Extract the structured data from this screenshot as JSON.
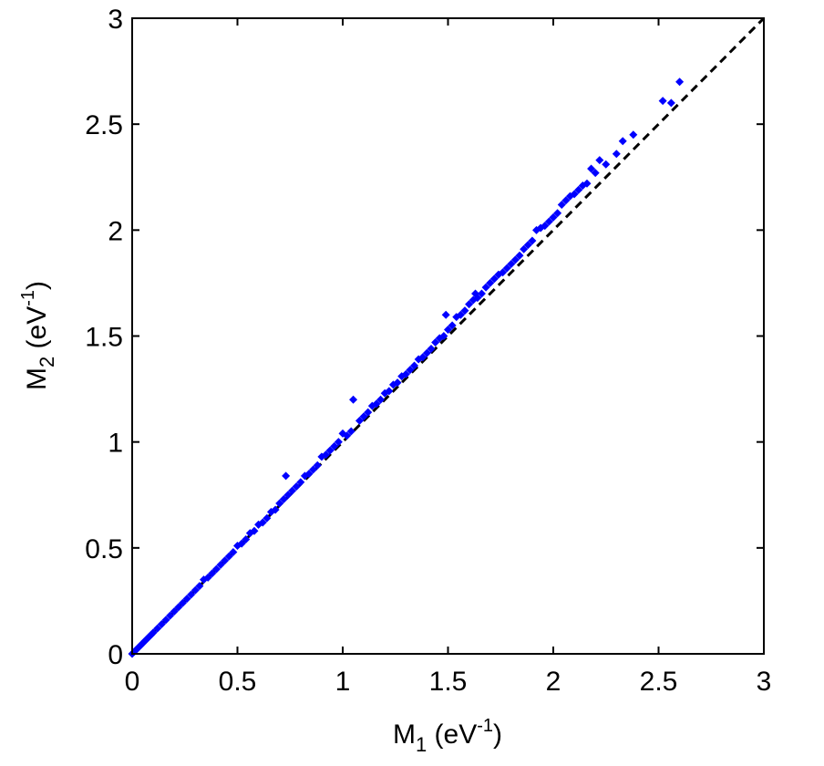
{
  "chart_data": {
    "type": "scatter",
    "title": "",
    "xlabel": {
      "base": "M",
      "sub": "1",
      "unit_prefix": " (eV",
      "unit_exp": "-1",
      "unit_suffix": ")"
    },
    "ylabel": {
      "base": "M",
      "sub": "2",
      "unit_prefix": " (eV",
      "unit_exp": "-1",
      "unit_suffix": ")"
    },
    "xlim": [
      0,
      3
    ],
    "ylim": [
      0,
      3
    ],
    "xticks": [
      "0",
      "0.5",
      "1",
      "1.5",
      "2",
      "2.5",
      "3"
    ],
    "yticks": [
      "0",
      "0.5",
      "1",
      "1.5",
      "2",
      "2.5",
      "3"
    ],
    "grid": false,
    "reference_line": {
      "style": "dashed",
      "color": "#000000",
      "from": [
        0,
        0
      ],
      "to": [
        3,
        3
      ]
    },
    "series": [
      {
        "marker": "diamond",
        "color": "#0000ff",
        "x": [
          0.0,
          0.01,
          0.02,
          0.03,
          0.04,
          0.05,
          0.06,
          0.07,
          0.08,
          0.09,
          0.1,
          0.12,
          0.14,
          0.16,
          0.18,
          0.2,
          0.22,
          0.24,
          0.26,
          0.28,
          0.3,
          0.32,
          0.34,
          0.36,
          0.38,
          0.4,
          0.42,
          0.44,
          0.46,
          0.48,
          0.5,
          0.52,
          0.54,
          0.56,
          0.58,
          0.6,
          0.62,
          0.64,
          0.66,
          0.68,
          0.7,
          0.72,
          0.73,
          0.74,
          0.76,
          0.78,
          0.8,
          0.82,
          0.84,
          0.86,
          0.88,
          0.9,
          0.92,
          0.94,
          0.96,
          0.98,
          1.0,
          1.02,
          1.04,
          1.05,
          1.08,
          1.1,
          1.12,
          1.14,
          1.16,
          1.18,
          1.2,
          1.22,
          1.24,
          1.26,
          1.28,
          1.3,
          1.32,
          1.34,
          1.36,
          1.38,
          1.4,
          1.42,
          1.44,
          1.46,
          1.48,
          1.49,
          1.5,
          1.52,
          1.54,
          1.56,
          1.58,
          1.6,
          1.62,
          1.63,
          1.64,
          1.66,
          1.68,
          1.7,
          1.72,
          1.74,
          1.76,
          1.78,
          1.8,
          1.82,
          1.84,
          1.86,
          1.88,
          1.9,
          1.92,
          1.94,
          1.96,
          1.98,
          2.0,
          2.02,
          2.04,
          2.06,
          2.08,
          2.1,
          2.12,
          2.14,
          2.16,
          2.18,
          2.2,
          2.22,
          2.25,
          2.3,
          2.33,
          2.38,
          2.52,
          2.56,
          2.6
        ],
        "y": [
          0.0,
          0.01,
          0.02,
          0.03,
          0.04,
          0.05,
          0.06,
          0.07,
          0.08,
          0.09,
          0.1,
          0.12,
          0.14,
          0.16,
          0.18,
          0.2,
          0.22,
          0.24,
          0.26,
          0.28,
          0.3,
          0.32,
          0.35,
          0.36,
          0.38,
          0.4,
          0.42,
          0.44,
          0.46,
          0.48,
          0.51,
          0.52,
          0.54,
          0.57,
          0.58,
          0.61,
          0.62,
          0.64,
          0.67,
          0.68,
          0.71,
          0.73,
          0.84,
          0.75,
          0.77,
          0.79,
          0.81,
          0.84,
          0.85,
          0.87,
          0.89,
          0.93,
          0.94,
          0.96,
          0.98,
          1.0,
          1.04,
          1.03,
          1.05,
          1.2,
          1.1,
          1.12,
          1.14,
          1.17,
          1.18,
          1.2,
          1.23,
          1.24,
          1.27,
          1.28,
          1.31,
          1.32,
          1.34,
          1.36,
          1.39,
          1.4,
          1.42,
          1.44,
          1.47,
          1.49,
          1.5,
          1.6,
          1.53,
          1.55,
          1.59,
          1.6,
          1.62,
          1.65,
          1.67,
          1.7,
          1.68,
          1.7,
          1.73,
          1.75,
          1.77,
          1.79,
          1.8,
          1.82,
          1.84,
          1.86,
          1.88,
          1.91,
          1.93,
          1.95,
          2.0,
          2.01,
          2.02,
          2.04,
          2.06,
          2.08,
          2.12,
          2.14,
          2.16,
          2.17,
          2.19,
          2.21,
          2.22,
          2.29,
          2.27,
          2.33,
          2.31,
          2.36,
          2.42,
          2.45,
          2.61,
          2.6,
          2.7
        ]
      }
    ]
  }
}
